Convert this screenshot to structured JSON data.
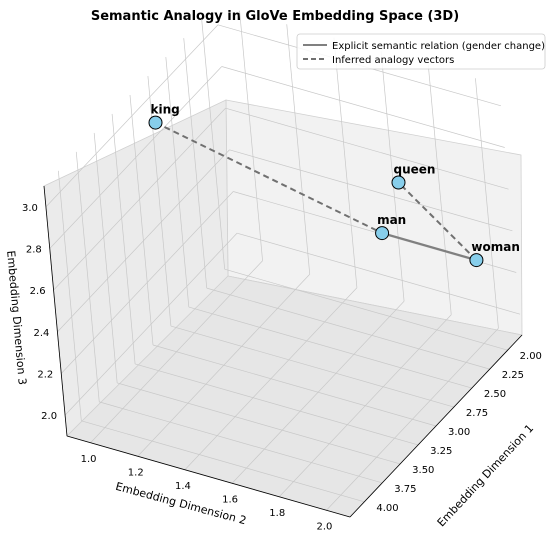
{
  "chart_data": {
    "type": "scatter",
    "projection": "3d",
    "title": "Semantic Analogy in GloVe Embedding Space (3D)",
    "xlabel": "Embedding Dimension 1",
    "ylabel": "Embedding Dimension 2",
    "zlabel": "Embedding Dimension 3",
    "xlim": [
      1.8,
      4.2
    ],
    "ylim": [
      0.9,
      2.1
    ],
    "zlim": [
      1.9,
      3.1
    ],
    "x_ticks": [
      "2.00",
      "2.25",
      "2.50",
      "2.75",
      "3.00",
      "3.25",
      "3.50",
      "3.75",
      "4.00"
    ],
    "y_ticks": [
      "1.0",
      "1.2",
      "1.4",
      "1.6",
      "1.8",
      "2.0"
    ],
    "z_ticks": [
      "2.0",
      "2.2",
      "2.4",
      "2.6",
      "2.8",
      "3.0"
    ],
    "grid": true,
    "legend_position": "top-right",
    "points": [
      {
        "label": "king",
        "x": 3.0,
        "y": 1.0,
        "z": 3.0
      },
      {
        "label": "man",
        "x": 2.0,
        "y": 1.6,
        "z": 2.3
      },
      {
        "label": "woman",
        "x": 2.0,
        "y": 2.0,
        "z": 2.3
      },
      {
        "label": "queen",
        "x": 2.9,
        "y": 2.0,
        "z": 3.0
      }
    ],
    "series": [
      {
        "name": "Explicit semantic relation (gender change)",
        "style": "solid",
        "from": "man",
        "to": "woman",
        "color": "#808080"
      },
      {
        "name": "Inferred analogy vectors",
        "style": "dashed",
        "segments": [
          [
            "king",
            "man"
          ],
          [
            "woman",
            "queen"
          ]
        ],
        "color": "#707070"
      }
    ],
    "marker_color": "#87ceeb"
  }
}
